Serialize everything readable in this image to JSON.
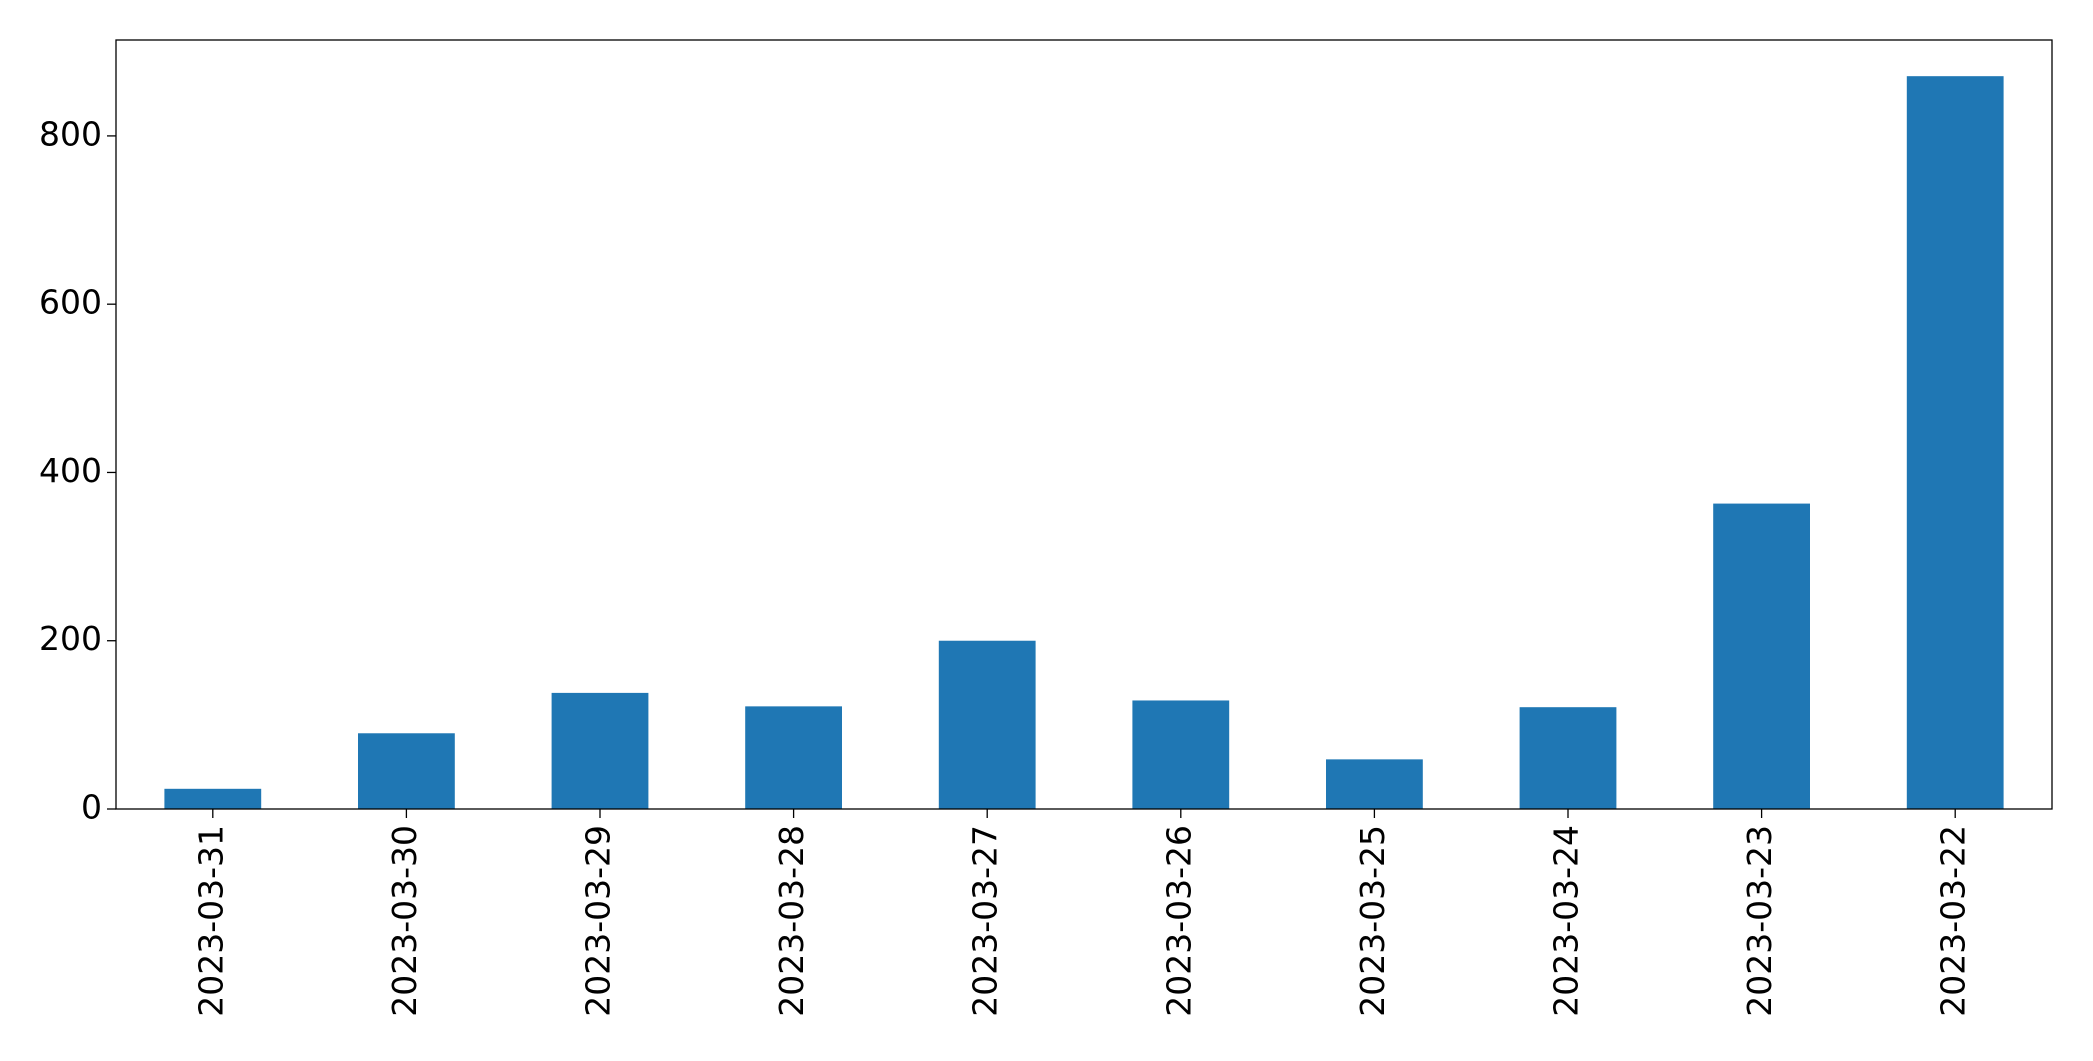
{
  "chart_data": {
    "type": "bar",
    "categories": [
      "2023-03-31",
      "2023-03-30",
      "2023-03-29",
      "2023-03-28",
      "2023-03-27",
      "2023-03-26",
      "2023-03-25",
      "2023-03-24",
      "2023-03-23",
      "2023-03-22"
    ],
    "values": [
      24,
      90,
      138,
      122,
      200,
      129,
      59,
      121,
      363,
      871
    ],
    "color": "#1f77b4",
    "ylim": [
      0,
      914
    ],
    "yticks": [
      0,
      200,
      400,
      600,
      800
    ],
    "grid": false
  }
}
